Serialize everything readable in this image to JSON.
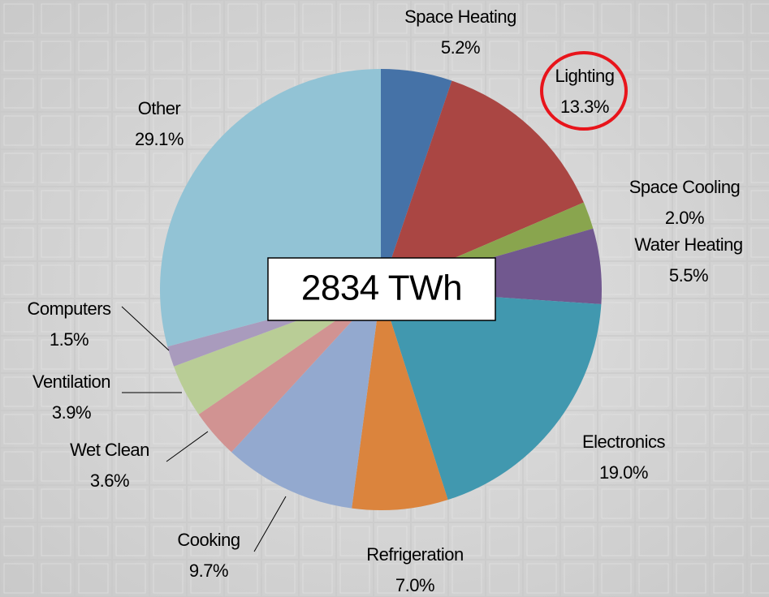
{
  "chart_data": {
    "type": "pie",
    "annotation": "2834 TWh",
    "categories": [
      "Space Heating",
      "Lighting",
      "Space Cooling",
      "Water Heating",
      "Electronics",
      "Refrigeration",
      "Cooking",
      "Wet Clean",
      "Ventilation",
      "Computers",
      "Other"
    ],
    "values": [
      5.2,
      13.3,
      2.0,
      5.5,
      19.0,
      7.0,
      9.7,
      3.6,
      3.9,
      1.5,
      29.1
    ],
    "value_labels": [
      "5.2%",
      "13.3%",
      "2.0%",
      "5.5%",
      "19.0%",
      "7.0%",
      "9.7%",
      "3.6%",
      "3.9%",
      "1.5%",
      "29.1%"
    ],
    "colors": [
      "#4572a7",
      "#aa4643",
      "#89a54e",
      "#71588f",
      "#4198af",
      "#db843d",
      "#93a9cf",
      "#d19392",
      "#b9cd96",
      "#a99bbd",
      "#92c3d5"
    ]
  }
}
